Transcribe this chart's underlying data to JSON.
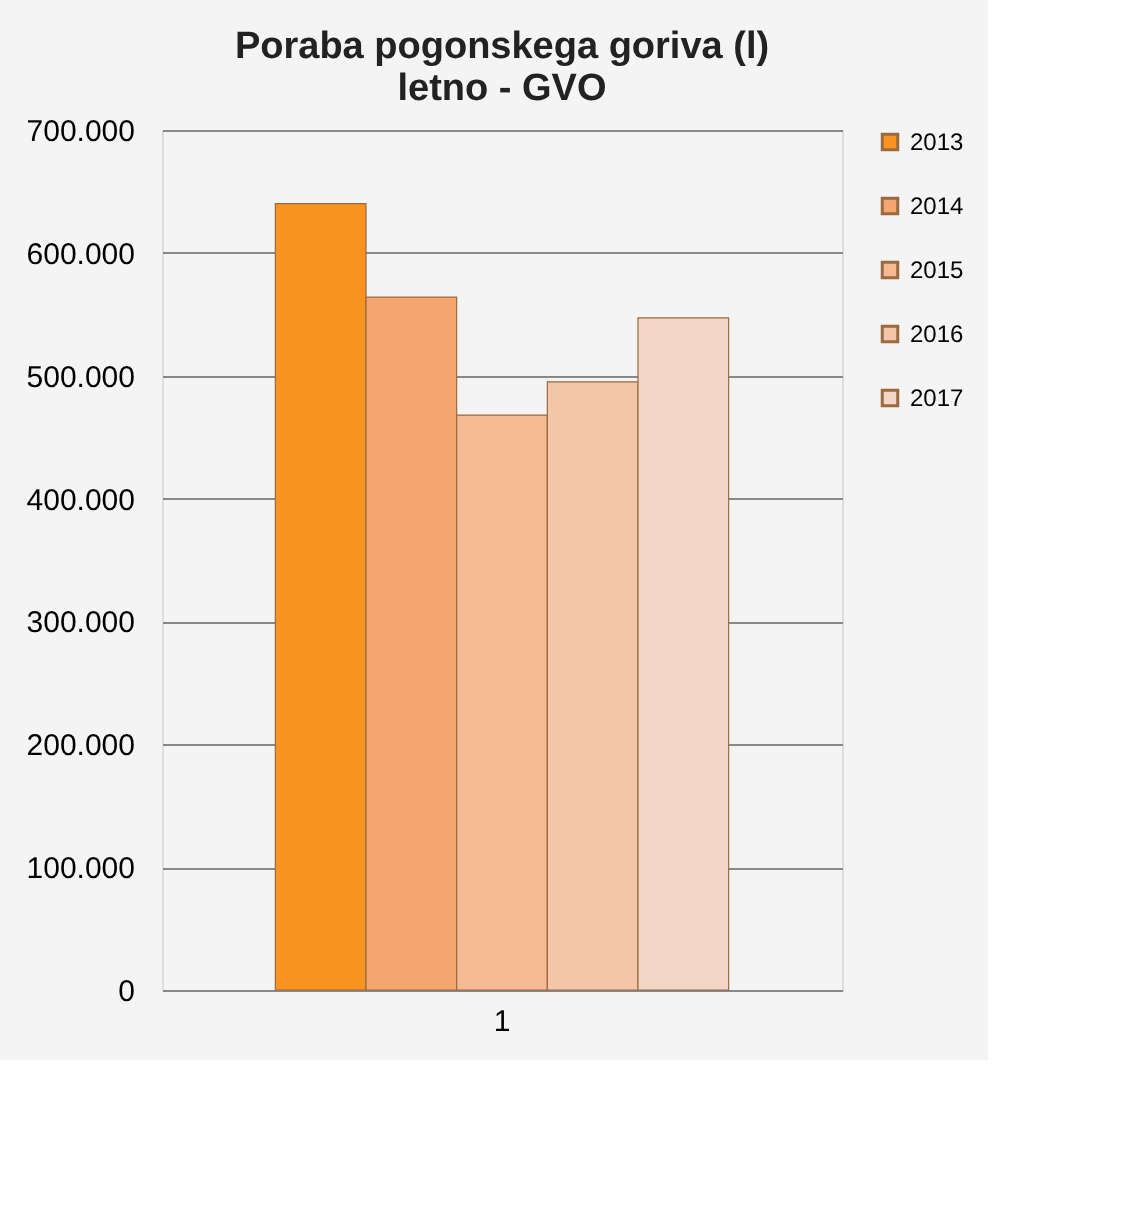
{
  "chart_data": {
    "type": "bar",
    "title": "Poraba pogonskega goriva (l)\nletno - GVO",
    "categories": [
      "1"
    ],
    "series": [
      {
        "name": "2013",
        "color": "#f7931e",
        "values": [
          640000
        ]
      },
      {
        "name": "2014",
        "color": "#f5a66e",
        "values": [
          564000
        ]
      },
      {
        "name": "2015",
        "color": "#f5b993",
        "values": [
          468000
        ]
      },
      {
        "name": "2016",
        "color": "#f3c6aa",
        "values": [
          495000
        ]
      },
      {
        "name": "2017",
        "color": "#f4d6c6",
        "values": [
          547000
        ]
      }
    ],
    "ylim": [
      0,
      700000
    ],
    "yticks": [
      {
        "value": 0,
        "label": "0"
      },
      {
        "value": 100000,
        "label": "100.000"
      },
      {
        "value": 200000,
        "label": "200.000"
      },
      {
        "value": 300000,
        "label": "300.000"
      },
      {
        "value": 400000,
        "label": "400.000"
      },
      {
        "value": 500000,
        "label": "500.000"
      },
      {
        "value": 600000,
        "label": "600.000"
      },
      {
        "value": 700000,
        "label": "700.000"
      }
    ],
    "grid": "y",
    "legend": "right"
  }
}
